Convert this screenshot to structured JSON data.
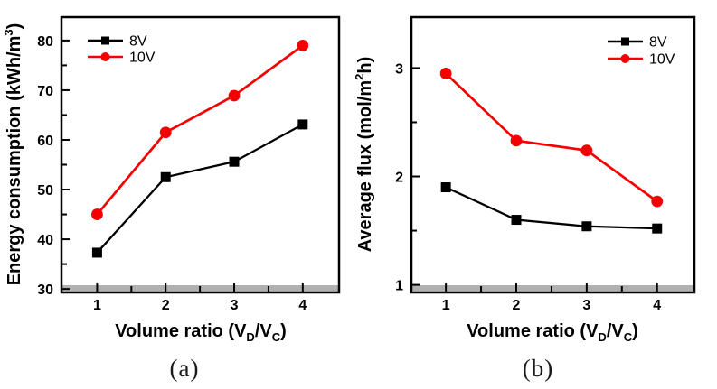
{
  "styles": {
    "background": "#ffffff",
    "axis_color": "#000000",
    "band_color": "#b0b0b0",
    "series_black": "#000000",
    "series_red": "#f50000"
  },
  "chart_data": [
    {
      "type": "line",
      "caption": "(a)",
      "xlabel": "Volume ratio (VD/VC)",
      "ylabel": "Energy consumption (kWh/m3)",
      "xlabel_parts": [
        {
          "t": "Volume ratio (V"
        },
        {
          "t": "D",
          "sub": true
        },
        {
          "t": "/V"
        },
        {
          "t": "C",
          "sub": true
        },
        {
          "t": ")"
        }
      ],
      "ylabel_parts": [
        {
          "t": "Energy consumption (kWh/m"
        },
        {
          "t": "3",
          "sup": true
        },
        {
          "t": ")"
        }
      ],
      "x": [
        1,
        2,
        3,
        4
      ],
      "series": [
        {
          "name": "8V",
          "color": "#000000",
          "marker": "square",
          "values": [
            37.3,
            52.5,
            55.6,
            63.1
          ]
        },
        {
          "name": "10V",
          "color": "#f50000",
          "marker": "circle",
          "values": [
            45.0,
            61.5,
            68.9,
            79.0
          ]
        }
      ],
      "xlim": [
        0.48,
        4.53
      ],
      "ylim": [
        29.3,
        84.7
      ],
      "xticks": [
        1,
        2,
        3,
        4
      ],
      "xticks_minor": [
        1.5,
        2.5,
        3.5
      ],
      "yticks": [
        30,
        40,
        50,
        60,
        70,
        80
      ],
      "yticks_minor": [
        35,
        45,
        55,
        65,
        75
      ],
      "legend": {
        "position": "top-left",
        "items": [
          "8V",
          "10V"
        ]
      },
      "grid": false
    },
    {
      "type": "line",
      "caption": "(b)",
      "xlabel": "Volume ratio (VD/VC)",
      "ylabel": "Average flux (mol/m2h)",
      "xlabel_parts": [
        {
          "t": "Volume ratio (V"
        },
        {
          "t": "D",
          "sub": true
        },
        {
          "t": "/V"
        },
        {
          "t": "C",
          "sub": true
        },
        {
          "t": ")"
        }
      ],
      "ylabel_parts": [
        {
          "t": "Average flux (mol/m"
        },
        {
          "t": "2",
          "sup": true
        },
        {
          "t": "h)"
        }
      ],
      "x": [
        1,
        2,
        3,
        4
      ],
      "series": [
        {
          "name": "8V",
          "color": "#000000",
          "marker": "square",
          "values": [
            1.9,
            1.6,
            1.54,
            1.52
          ]
        },
        {
          "name": "10V",
          "color": "#f50000",
          "marker": "circle",
          "values": [
            2.95,
            2.33,
            2.24,
            1.77
          ]
        }
      ],
      "xlim": [
        0.51,
        4.53
      ],
      "ylim": [
        0.93,
        3.47
      ],
      "xticks": [
        1,
        2,
        3,
        4
      ],
      "xticks_minor": [
        1.5,
        2.5,
        3.5
      ],
      "yticks": [
        1,
        2,
        3
      ],
      "yticks_minor": [
        1.5,
        2.5
      ],
      "legend": {
        "position": "top-right",
        "items": [
          "8V",
          "10V"
        ]
      },
      "grid": false
    }
  ]
}
